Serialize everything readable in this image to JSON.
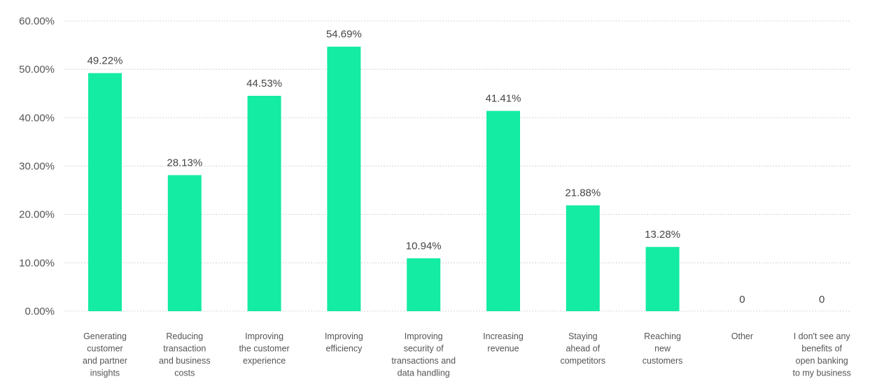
{
  "chart_data": {
    "type": "bar",
    "title": "",
    "xlabel": "",
    "ylabel": "",
    "ylim": [
      0,
      60
    ],
    "grid": true,
    "y_tick_labels": [
      "0.00%",
      "10.00%",
      "20.00%",
      "30.00%",
      "40.00%",
      "50.00%",
      "60.00%"
    ],
    "y_ticks": [
      0,
      10,
      20,
      30,
      40,
      50,
      60
    ],
    "categories": [
      [
        "Generating",
        "customer",
        "and partner",
        "insights"
      ],
      [
        "Reducing",
        "transaction",
        "and business",
        "costs"
      ],
      [
        "Improving",
        "the customer",
        "experience"
      ],
      [
        "Improving",
        "efficiency"
      ],
      [
        "Improving",
        "security of",
        "transactions and",
        "data handling"
      ],
      [
        "Increasing",
        "revenue"
      ],
      [
        "Staying",
        "ahead of",
        "competitors"
      ],
      [
        "Reaching",
        "new",
        "customers"
      ],
      [
        "Other"
      ],
      [
        "I don't see any",
        "benefits of",
        "open banking",
        "to my business"
      ]
    ],
    "values": [
      49.22,
      28.13,
      44.53,
      54.69,
      10.94,
      41.41,
      21.88,
      13.28,
      0,
      0
    ],
    "data_labels": [
      "49.22%",
      "28.13%",
      "44.53%",
      "54.69%",
      "10.94%",
      "41.41%",
      "21.88%",
      "13.28%",
      "0",
      "0"
    ],
    "bar_color": "#14eba3"
  }
}
